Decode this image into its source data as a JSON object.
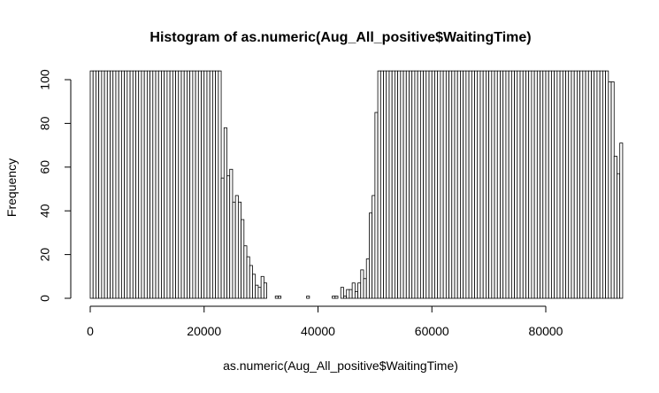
{
  "chart_data": {
    "type": "bar",
    "subtype": "histogram",
    "title": "Histogram of as.numeric(Aug_All_positive$WaitingTime)",
    "xlabel": "as.numeric(Aug_All_positive$WaitingTime)",
    "ylabel": "Frequency",
    "bin_width": 500,
    "x_start": 0,
    "ylim": [
      0,
      104
    ],
    "xlim": [
      0,
      93500
    ],
    "x_ticks": [
      0,
      20000,
      40000,
      60000,
      80000
    ],
    "x_tick_labels": [
      "0",
      "20000",
      "40000",
      "60000",
      "80000"
    ],
    "y_ticks": [
      0,
      20,
      40,
      60,
      80,
      100
    ],
    "y_tick_labels": [
      "0",
      "20",
      "40",
      "60",
      "80",
      "100"
    ],
    "clipped_top": true,
    "grid": false,
    "colors": {
      "bar_fill": "#ffffff",
      "bar_stroke": "#000000",
      "background": "#ffffff"
    },
    "values": [
      104,
      104,
      104,
      104,
      104,
      104,
      104,
      104,
      104,
      104,
      104,
      104,
      104,
      104,
      104,
      104,
      104,
      104,
      104,
      104,
      104,
      104,
      104,
      104,
      104,
      104,
      104,
      104,
      104,
      104,
      104,
      104,
      104,
      104,
      104,
      104,
      104,
      104,
      104,
      104,
      104,
      104,
      104,
      104,
      104,
      104,
      55,
      78,
      56,
      59,
      44,
      47,
      44,
      36,
      24,
      19,
      15,
      11,
      6,
      5,
      10,
      7,
      0,
      0,
      0,
      1,
      1,
      0,
      0,
      0,
      0,
      0,
      0,
      0,
      0,
      0,
      1,
      0,
      0,
      0,
      0,
      0,
      0,
      0,
      0,
      1,
      1,
      0,
      5,
      1,
      4,
      4,
      7,
      3,
      7,
      13,
      9,
      18,
      39,
      47,
      85,
      104,
      104,
      104,
      104,
      104,
      104,
      104,
      104,
      104,
      104,
      104,
      104,
      104,
      104,
      104,
      104,
      104,
      104,
      104,
      104,
      104,
      104,
      104,
      104,
      104,
      104,
      104,
      104,
      104,
      104,
      104,
      104,
      104,
      104,
      104,
      104,
      104,
      104,
      104,
      104,
      104,
      104,
      104,
      104,
      104,
      104,
      104,
      104,
      104,
      104,
      104,
      104,
      104,
      104,
      104,
      104,
      104,
      104,
      104,
      104,
      104,
      104,
      104,
      104,
      104,
      104,
      104,
      104,
      104,
      104,
      104,
      104,
      104,
      104,
      104,
      104,
      104,
      104,
      104,
      104,
      104,
      99,
      99,
      65,
      57,
      71
    ]
  }
}
